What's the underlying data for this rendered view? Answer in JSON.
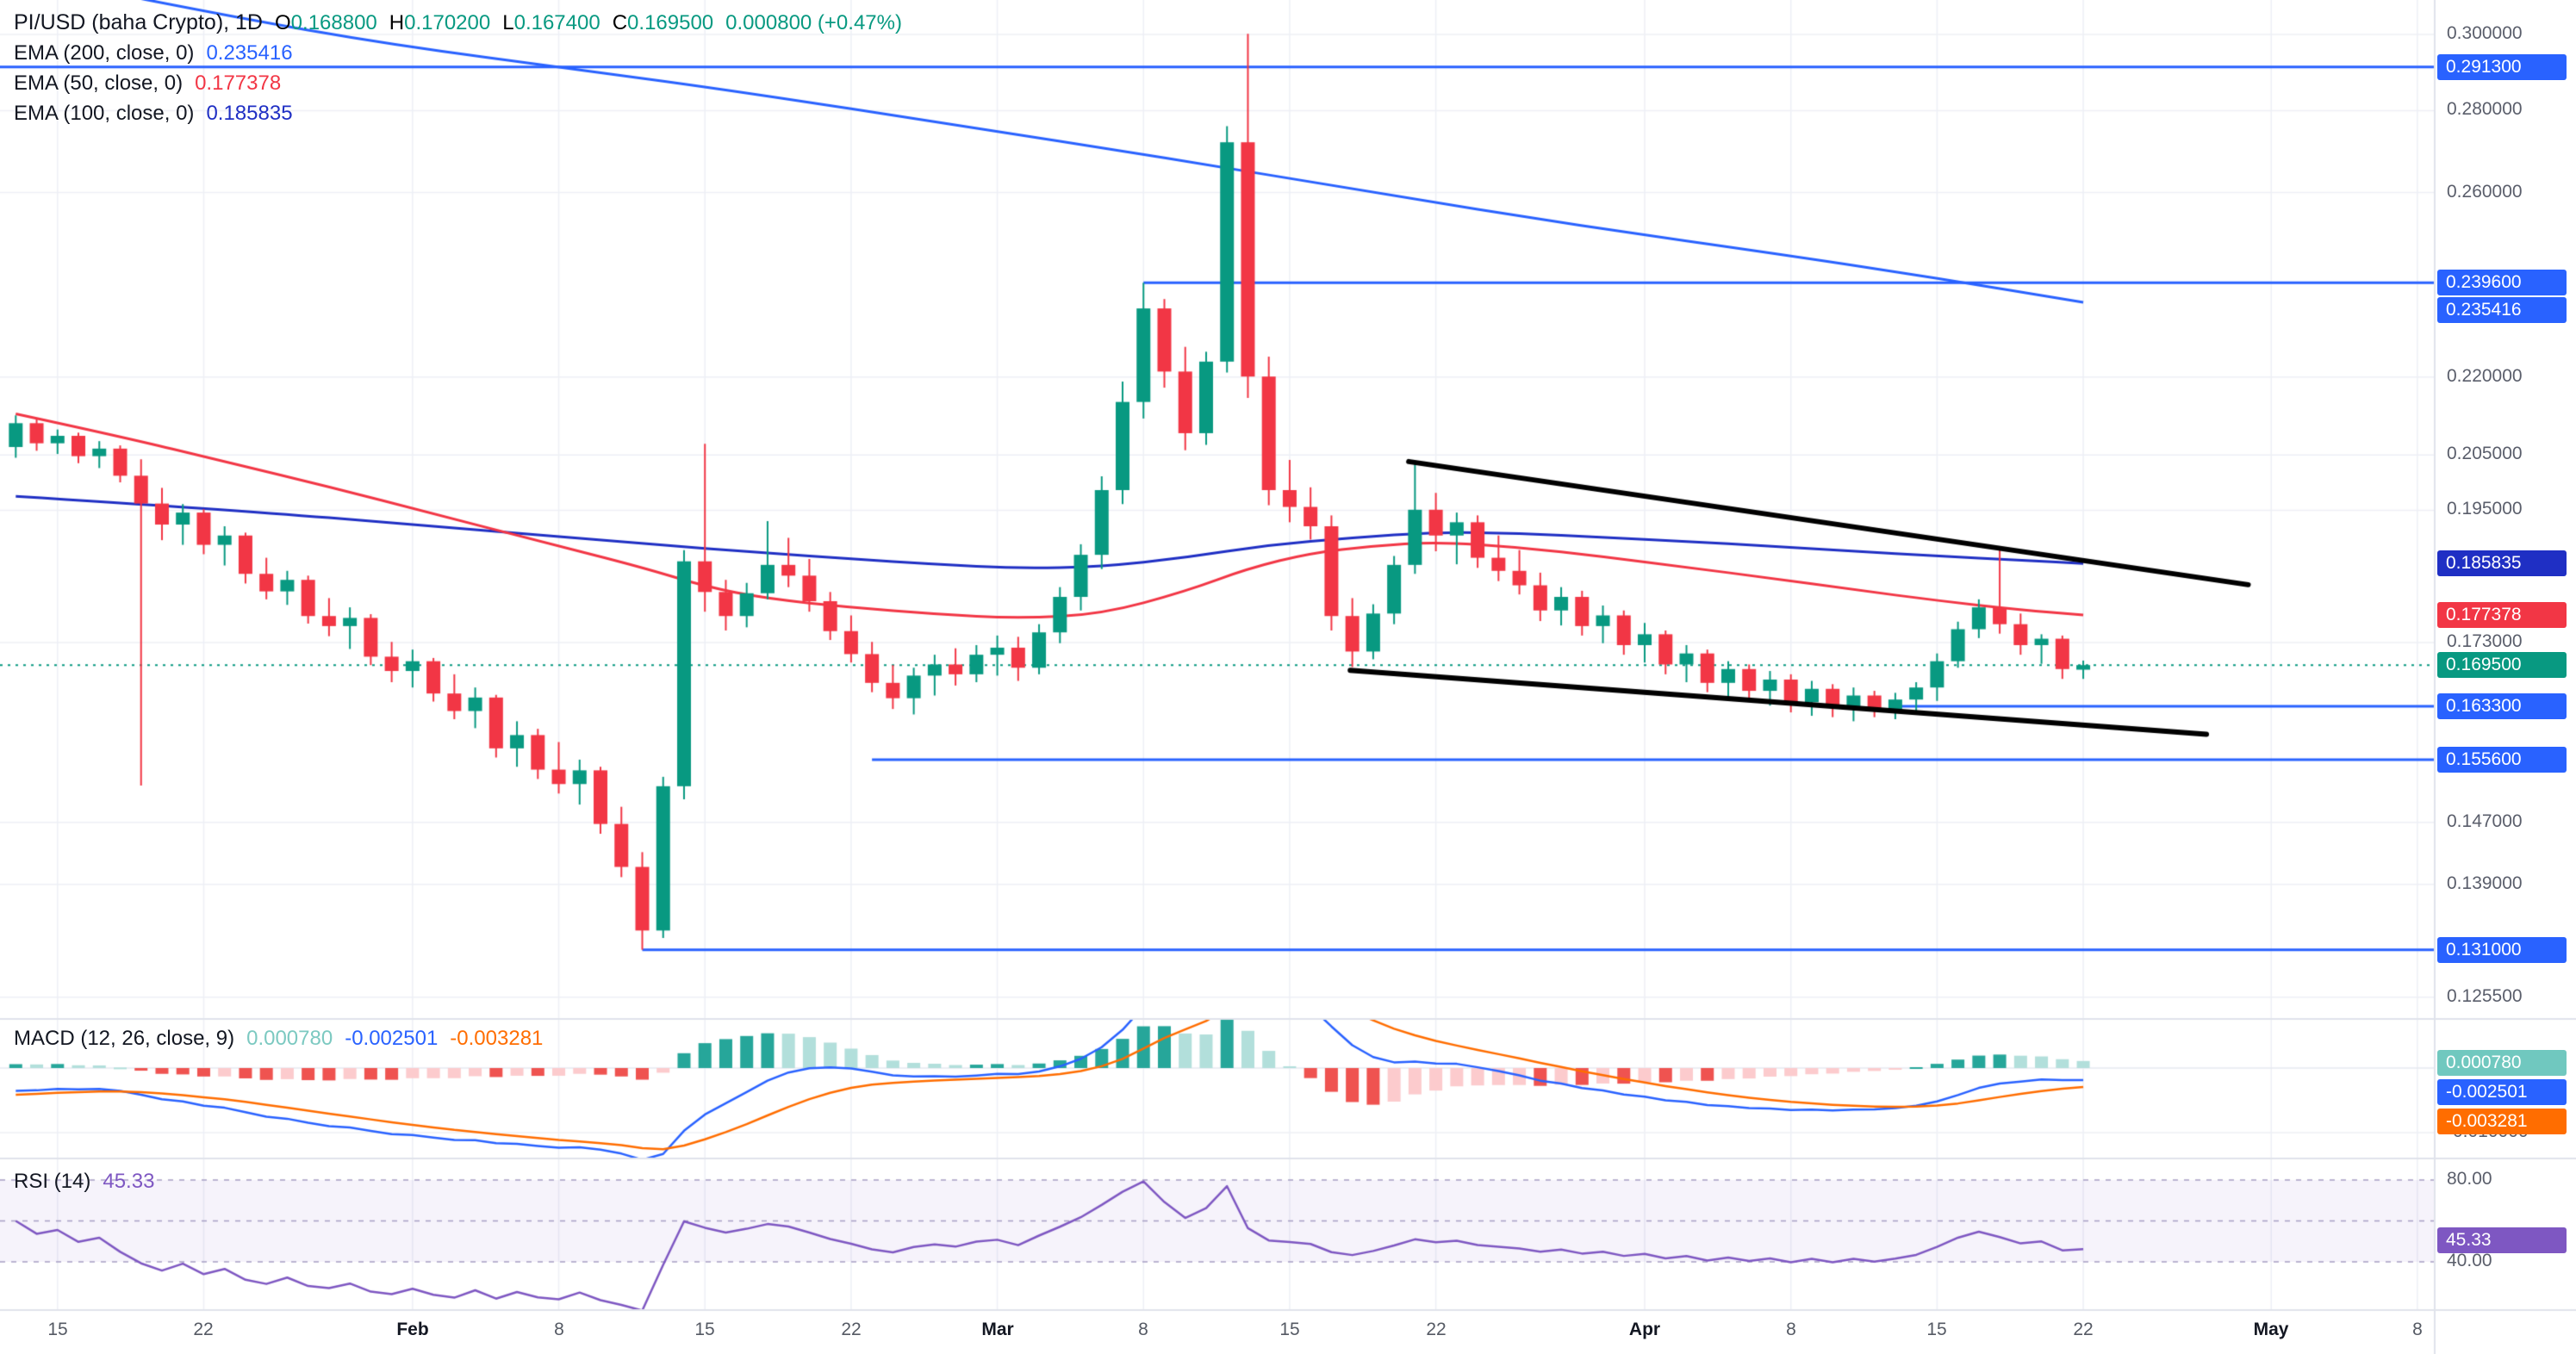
{
  "header": {
    "symbol_line": {
      "title": "PI/USD (baha Crypto), 1D",
      "ohlc": [
        {
          "k": "O",
          "v": "0.168800"
        },
        {
          "k": "H",
          "v": "0.170200"
        },
        {
          "k": "L",
          "v": "0.167400"
        },
        {
          "k": "C",
          "v": "0.169500"
        }
      ],
      "change": "0.000800 (+0.47%)"
    },
    "indicators": [
      {
        "name": "EMA (200, close, 0)",
        "value": "0.235416",
        "color": "#2962ff"
      },
      {
        "name": "EMA (50, close, 0)",
        "value": "0.177378",
        "color": "#f23645"
      },
      {
        "name": "EMA (100, close, 0)",
        "value": "0.185835",
        "color": "#1f2fc4"
      }
    ]
  },
  "macd_legend": {
    "name": "MACD (12, 26, close, 9)",
    "values": [
      {
        "text": "0.000780",
        "color": "#7cc9c1"
      },
      {
        "text": "-0.002501",
        "color": "#2962ff"
      },
      {
        "text": "-0.003281",
        "color": "#ff6d00"
      }
    ]
  },
  "rsi_legend": {
    "name": "RSI (14)",
    "value": "45.33",
    "color": "#7e57c2"
  },
  "price_axis": {
    "ticks": [
      {
        "text": "0.300000",
        "price": 0.3
      },
      {
        "text": "0.280000",
        "price": 0.28
      },
      {
        "text": "0.260000",
        "price": 0.26
      },
      {
        "text": "0.220000",
        "price": 0.22
      },
      {
        "text": "0.205000",
        "price": 0.205
      },
      {
        "text": "0.195000",
        "price": 0.195
      },
      {
        "text": "0.173000",
        "price": 0.173
      },
      {
        "text": "0.147000",
        "price": 0.147
      },
      {
        "text": "0.139000",
        "price": 0.139
      },
      {
        "text": "0.125500",
        "price": 0.1255
      }
    ],
    "badges": [
      {
        "text": "0.291300",
        "price": 0.2913,
        "color": "blue"
      },
      {
        "text": "0.239600",
        "price": 0.2396,
        "color": "blue"
      },
      {
        "text": "0.235416",
        "price": 0.235416,
        "color": "blue"
      },
      {
        "text": "0.185835",
        "price": 0.185835,
        "color": "navy"
      },
      {
        "text": "0.177378",
        "price": 0.177378,
        "color": "red"
      },
      {
        "text": "0.169500",
        "price": 0.1695,
        "color": "green"
      },
      {
        "text": "0.163300",
        "price": 0.1633,
        "color": "blue"
      },
      {
        "text": "0.155600",
        "price": 0.1556,
        "color": "blue"
      },
      {
        "text": "0.131000",
        "price": 0.131,
        "color": "blue"
      }
    ]
  },
  "macd_axis": {
    "badges": [
      {
        "text": "0.000780",
        "value": 0.00078,
        "color": "teal"
      },
      {
        "text": "-0.002501",
        "value": -0.002501,
        "color": "blue"
      },
      {
        "text": "-0.003281",
        "value": -0.003281,
        "color": "orange"
      }
    ],
    "ticks": [
      {
        "text": "-0.010000",
        "value": -0.01
      }
    ]
  },
  "rsi_axis": {
    "ticks": [
      {
        "text": "80.00",
        "value": 80
      },
      {
        "text": "40.00",
        "value": 40
      }
    ],
    "badge": {
      "text": "45.33",
      "value": 45.33,
      "color": "purple"
    }
  },
  "time_axis": [
    {
      "label": "15",
      "day": 2
    },
    {
      "label": "22",
      "day": 9
    },
    {
      "label": "Feb",
      "day": 19,
      "month": true
    },
    {
      "label": "8",
      "day": 26
    },
    {
      "label": "15",
      "day": 33
    },
    {
      "label": "22",
      "day": 40
    },
    {
      "label": "Mar",
      "day": 47,
      "month": true
    },
    {
      "label": "8",
      "day": 54
    },
    {
      "label": "15",
      "day": 61
    },
    {
      "label": "22",
      "day": 68
    },
    {
      "label": "Apr",
      "day": 78,
      "month": true
    },
    {
      "label": "8",
      "day": 85
    },
    {
      "label": "15",
      "day": 92
    },
    {
      "label": "22",
      "day": 99
    },
    {
      "label": "May",
      "day": 108,
      "month": true
    },
    {
      "label": "8",
      "day": 115
    }
  ],
  "chart_data": {
    "type": "candlestick",
    "symbol": "PI/USD",
    "exchange": "baha Crypto",
    "interval": "1D",
    "price_scale": "log",
    "visible_price_range": [
      0.1231,
      0.3095
    ],
    "current_price": 0.1695,
    "last_bar": {
      "open": 0.1688,
      "high": 0.1702,
      "low": 0.1674,
      "close": 0.1695,
      "change": 0.0008,
      "change_pct": 0.47
    },
    "candles": [
      [
        0.2065,
        0.2125,
        0.2045,
        0.211
      ],
      [
        0.211,
        0.212,
        0.2058,
        0.2072
      ],
      [
        0.2072,
        0.2098,
        0.2052,
        0.2086
      ],
      [
        0.2086,
        0.2092,
        0.2035,
        0.2048
      ],
      [
        0.2048,
        0.2076,
        0.2026,
        0.2062
      ],
      [
        0.2062,
        0.2068,
        0.2,
        0.2012
      ],
      [
        0.2012,
        0.2042,
        0.152,
        0.1962
      ],
      [
        0.1962,
        0.199,
        0.1898,
        0.1925
      ],
      [
        0.1925,
        0.1961,
        0.189,
        0.1946
      ],
      [
        0.1946,
        0.1952,
        0.1874,
        0.189
      ],
      [
        0.189,
        0.1922,
        0.1855,
        0.1906
      ],
      [
        0.1906,
        0.1911,
        0.1825,
        0.1841
      ],
      [
        0.1841,
        0.1868,
        0.1799,
        0.1812
      ],
      [
        0.1812,
        0.1846,
        0.179,
        0.1831
      ],
      [
        0.1831,
        0.1838,
        0.176,
        0.1772
      ],
      [
        0.1772,
        0.1801,
        0.174,
        0.1756
      ],
      [
        0.1756,
        0.1786,
        0.172,
        0.1769
      ],
      [
        0.1769,
        0.1775,
        0.1695,
        0.1708
      ],
      [
        0.1708,
        0.1731,
        0.1669,
        0.1686
      ],
      [
        0.1686,
        0.1719,
        0.1661,
        0.1701
      ],
      [
        0.1701,
        0.1706,
        0.164,
        0.1652
      ],
      [
        0.1652,
        0.1681,
        0.1614,
        0.1626
      ],
      [
        0.1626,
        0.1661,
        0.1601,
        0.1646
      ],
      [
        0.1646,
        0.165,
        0.1559,
        0.1572
      ],
      [
        0.1572,
        0.1611,
        0.1546,
        0.1591
      ],
      [
        0.1591,
        0.16,
        0.1529,
        0.1542
      ],
      [
        0.1542,
        0.1581,
        0.1509,
        0.1522
      ],
      [
        0.1522,
        0.1556,
        0.1494,
        0.1541
      ],
      [
        0.1541,
        0.1546,
        0.1455,
        0.1468
      ],
      [
        0.1468,
        0.1491,
        0.1399,
        0.1412
      ],
      [
        0.1412,
        0.1431,
        0.131,
        0.1333
      ],
      [
        0.1333,
        0.1532,
        0.1324,
        0.1519
      ],
      [
        0.1519,
        0.1881,
        0.1501,
        0.1862
      ],
      [
        0.1862,
        0.2071,
        0.1779,
        0.1811
      ],
      [
        0.1811,
        0.1831,
        0.1749,
        0.1772
      ],
      [
        0.1772,
        0.1826,
        0.1754,
        0.1809
      ],
      [
        0.1809,
        0.1931,
        0.1799,
        0.1856
      ],
      [
        0.1856,
        0.1902,
        0.1819,
        0.1838
      ],
      [
        0.1838,
        0.1866,
        0.1779,
        0.1796
      ],
      [
        0.1796,
        0.1811,
        0.1734,
        0.1748
      ],
      [
        0.1748,
        0.1773,
        0.1699,
        0.1712
      ],
      [
        0.1712,
        0.1731,
        0.1654,
        0.1668
      ],
      [
        0.1668,
        0.1695,
        0.1629,
        0.1645
      ],
      [
        0.1645,
        0.1691,
        0.1621,
        0.1679
      ],
      [
        0.1679,
        0.1711,
        0.1649,
        0.1696
      ],
      [
        0.1696,
        0.1721,
        0.1664,
        0.1681
      ],
      [
        0.1681,
        0.1726,
        0.1669,
        0.1711
      ],
      [
        0.1711,
        0.1741,
        0.1679,
        0.1722
      ],
      [
        0.1722,
        0.1739,
        0.1671,
        0.1691
      ],
      [
        0.1691,
        0.1759,
        0.1681,
        0.1746
      ],
      [
        0.1746,
        0.1819,
        0.1729,
        0.1803
      ],
      [
        0.1803,
        0.1891,
        0.1781,
        0.1873
      ],
      [
        0.1873,
        0.2011,
        0.1849,
        0.1986
      ],
      [
        0.1986,
        0.2191,
        0.1961,
        0.2151
      ],
      [
        0.2151,
        0.2396,
        0.2119,
        0.2341
      ],
      [
        0.2341,
        0.2361,
        0.2179,
        0.2211
      ],
      [
        0.2211,
        0.2261,
        0.2059,
        0.2091
      ],
      [
        0.2091,
        0.2251,
        0.2069,
        0.2231
      ],
      [
        0.2231,
        0.2761,
        0.2209,
        0.2721
      ],
      [
        0.2721,
        0.3002,
        0.2159,
        0.2201
      ],
      [
        0.2201,
        0.2241,
        0.1959,
        0.1986
      ],
      [
        0.1986,
        0.2041,
        0.1929,
        0.1956
      ],
      [
        0.1956,
        0.1991,
        0.1899,
        0.1922
      ],
      [
        0.1922,
        0.1941,
        0.1749,
        0.1772
      ],
      [
        0.1772,
        0.1801,
        0.1692,
        0.1716
      ],
      [
        0.1716,
        0.1791,
        0.1704,
        0.1776
      ],
      [
        0.1776,
        0.1871,
        0.1759,
        0.1856
      ],
      [
        0.1856,
        0.2035,
        0.1841,
        0.1951
      ],
      [
        0.1951,
        0.1981,
        0.1879,
        0.1906
      ],
      [
        0.1906,
        0.1946,
        0.1857,
        0.1929
      ],
      [
        0.1929,
        0.1941,
        0.1851,
        0.1868
      ],
      [
        0.1868,
        0.1906,
        0.1829,
        0.1846
      ],
      [
        0.1846,
        0.1881,
        0.1807,
        0.1822
      ],
      [
        0.1822,
        0.1843,
        0.1764,
        0.1781
      ],
      [
        0.1781,
        0.1819,
        0.1757,
        0.1803
      ],
      [
        0.1803,
        0.1813,
        0.1741,
        0.1756
      ],
      [
        0.1756,
        0.1789,
        0.1729,
        0.1773
      ],
      [
        0.1773,
        0.1781,
        0.1711,
        0.1726
      ],
      [
        0.1726,
        0.1761,
        0.1699,
        0.1743
      ],
      [
        0.1743,
        0.1749,
        0.1681,
        0.1696
      ],
      [
        0.1696,
        0.1726,
        0.1669,
        0.1713
      ],
      [
        0.1713,
        0.1719,
        0.1654,
        0.1668
      ],
      [
        0.1668,
        0.1701,
        0.1647,
        0.1689
      ],
      [
        0.1689,
        0.1696,
        0.1641,
        0.1656
      ],
      [
        0.1656,
        0.1686,
        0.1634,
        0.1673
      ],
      [
        0.1673,
        0.1681,
        0.1624,
        0.1639
      ],
      [
        0.1639,
        0.1671,
        0.1619,
        0.1659
      ],
      [
        0.1659,
        0.1666,
        0.1617,
        0.1631
      ],
      [
        0.1631,
        0.1661,
        0.1611,
        0.1649
      ],
      [
        0.1649,
        0.1656,
        0.1617,
        0.1628
      ],
      [
        0.1628,
        0.1653,
        0.1614,
        0.1643
      ],
      [
        0.1643,
        0.1669,
        0.1621,
        0.1661
      ],
      [
        0.1661,
        0.1713,
        0.1641,
        0.1701
      ],
      [
        0.1701,
        0.1763,
        0.1691,
        0.1751
      ],
      [
        0.1751,
        0.1799,
        0.1737,
        0.1786
      ],
      [
        0.1786,
        0.1881,
        0.1744,
        0.1759
      ],
      [
        0.1759,
        0.1776,
        0.1711,
        0.1726
      ],
      [
        0.1726,
        0.1743,
        0.1697,
        0.1736
      ],
      [
        0.1736,
        0.1741,
        0.1674,
        0.1689
      ],
      [
        0.1688,
        0.1702,
        0.1674,
        0.1695
      ]
    ],
    "ema_overlays": [
      {
        "period": 200,
        "color": "#2962ff",
        "last": 0.235416,
        "points": [
          [
            2,
            0.3145
          ],
          [
            10,
            0.3052
          ],
          [
            18,
            0.2972
          ],
          [
            27,
            0.2906
          ],
          [
            35,
            0.2846
          ],
          [
            45,
            0.2764
          ],
          [
            55,
            0.2684
          ],
          [
            65,
            0.26
          ],
          [
            75,
            0.2522
          ],
          [
            85,
            0.2455
          ],
          [
            92,
            0.2406
          ],
          [
            99,
            0.235416
          ]
        ]
      },
      {
        "period": 100,
        "color": "#1f2fc4",
        "last": 0.185835,
        "points": [
          [
            0,
            0.1975
          ],
          [
            10,
            0.1952
          ],
          [
            20,
            0.1922
          ],
          [
            30,
            0.1892
          ],
          [
            36,
            0.1876
          ],
          [
            40,
            0.1866
          ],
          [
            44,
            0.1857
          ],
          [
            48,
            0.185
          ],
          [
            52,
            0.1853
          ],
          [
            56,
            0.1868
          ],
          [
            60,
            0.189
          ],
          [
            64,
            0.1902
          ],
          [
            68,
            0.1912
          ],
          [
            72,
            0.191
          ],
          [
            76,
            0.1903
          ],
          [
            80,
            0.1896
          ],
          [
            84,
            0.1888
          ],
          [
            88,
            0.1879
          ],
          [
            92,
            0.1871
          ],
          [
            96,
            0.1864
          ],
          [
            99,
            0.185835
          ]
        ]
      },
      {
        "period": 50,
        "color": "#f23645",
        "last": 0.177378,
        "points": [
          [
            0,
            0.2128
          ],
          [
            5,
            0.2085
          ],
          [
            10,
            0.2038
          ],
          [
            15,
            0.1992
          ],
          [
            20,
            0.1944
          ],
          [
            25,
            0.1897
          ],
          [
            30,
            0.1852
          ],
          [
            33,
            0.182
          ],
          [
            36,
            0.18
          ],
          [
            40,
            0.1786
          ],
          [
            44,
            0.1775
          ],
          [
            48,
            0.1768
          ],
          [
            52,
            0.1775
          ],
          [
            56,
            0.1812
          ],
          [
            59,
            0.185
          ],
          [
            62,
            0.1876
          ],
          [
            65,
            0.1888
          ],
          [
            68,
            0.1895
          ],
          [
            72,
            0.1886
          ],
          [
            76,
            0.187
          ],
          [
            80,
            0.1852
          ],
          [
            84,
            0.1834
          ],
          [
            88,
            0.1815
          ],
          [
            92,
            0.1797
          ],
          [
            96,
            0.1782
          ],
          [
            99,
            0.177378
          ]
        ]
      }
    ],
    "levels": [
      {
        "price": 0.2913,
        "label": "0.291300",
        "from_day": null
      },
      {
        "price": 0.2396,
        "label": "0.239600",
        "from_day": 54
      },
      {
        "price": 0.1633,
        "label": "0.163300",
        "from_day": 90
      },
      {
        "price": 0.1556,
        "label": "0.155600",
        "from_day": 41
      },
      {
        "price": 0.131,
        "label": "0.131000",
        "from_day": 30
      }
    ],
    "trendlines": [
      {
        "from": [
          66.7,
          0.2038
        ],
        "to": [
          106.9,
          0.1823
        ]
      },
      {
        "from": [
          63.9,
          0.1687
        ],
        "to": [
          104.9,
          0.1592
        ]
      }
    ],
    "macd": {
      "fast": 12,
      "slow": 26,
      "signal": 9,
      "last_hist": 0.00078,
      "last_macd": -0.002501,
      "last_signal": -0.003281
    },
    "rsi": {
      "period": 14,
      "last": 45.33,
      "bands": [
        80,
        60,
        40
      ]
    }
  },
  "colors": {
    "up": "#089981",
    "down": "#f23645",
    "level": "#2962ff",
    "trend": "#000000",
    "current_line": "#089981",
    "macd_line": "#2962ff",
    "signal_line": "#ff6d00",
    "hist_up": "#26a69a",
    "hist_up_weak": "#b2dfdb",
    "hist_down": "#ef5350",
    "hist_down_weak": "#fccbcd",
    "rsi": "#7e57c2",
    "band": "#a79fc4",
    "band_fill": "rgba(126,87,194,0.07)",
    "grid": "#eef0f6",
    "separator": "#e0e3eb",
    "badge_blue": "#2962ff",
    "badge_navy": "#1f2fc4",
    "badge_red": "#f23645",
    "badge_green": "#089981",
    "badge_teal": "#70c8bf",
    "badge_orange": "#ff6d00",
    "badge_purple": "#7e57c2"
  }
}
